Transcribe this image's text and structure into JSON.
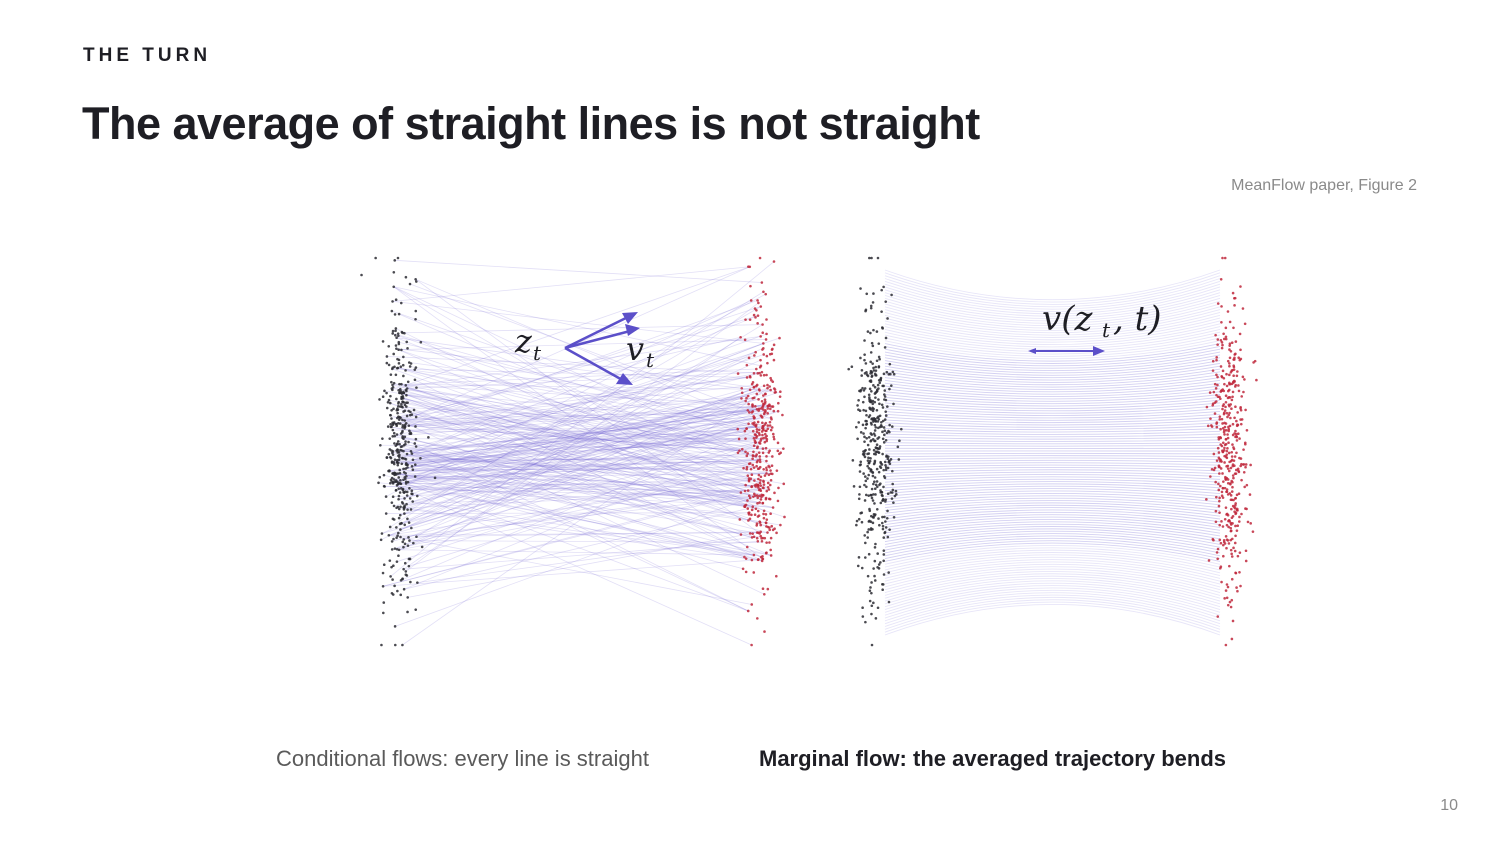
{
  "slide": {
    "eyebrow": "THE TURN",
    "title": "The average of straight lines is not straight",
    "credit": "MeanFlow paper, Figure 2",
    "page_number": "10"
  },
  "figure": {
    "left_panel": {
      "label_z": "z",
      "label_z_sub": "t",
      "label_v": "v",
      "label_v_sub": "t"
    },
    "right_panel": {
      "label": "v(z",
      "label_sub": "t",
      "label_tail": ", t)"
    },
    "colors": {
      "source_points": "#2b2b33",
      "target_points": "#c0283c",
      "flow_lines": "#7a6fd8",
      "arrows": "#5b4fc9"
    }
  },
  "captions": {
    "left": "Conditional flows: every line is straight",
    "right": "Marginal flow: the averaged trajectory bends"
  }
}
